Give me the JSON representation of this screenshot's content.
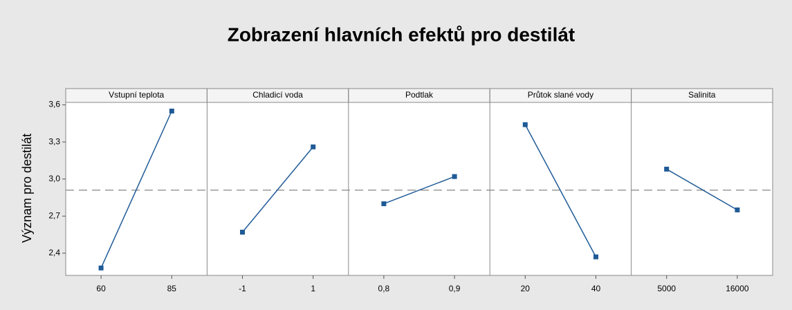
{
  "chart_data": {
    "type": "line",
    "title": "Zobrazení hlavních efektů pro destilát",
    "y_label": "Význam pro destilát",
    "ylim": [
      2.22,
      3.62
    ],
    "yticks": [
      {
        "value": 2.4,
        "label": "2,4"
      },
      {
        "value": 2.7,
        "label": "2,7"
      },
      {
        "value": 3.0,
        "label": "3,0"
      },
      {
        "value": 3.3,
        "label": "3,3"
      },
      {
        "value": 3.6,
        "label": "3,6"
      }
    ],
    "reference_line": 2.91,
    "color": "#1f5a96",
    "panels": [
      {
        "title": "Vstupní teplota",
        "categories": [
          "60",
          "85"
        ],
        "values": [
          2.28,
          3.55
        ]
      },
      {
        "title": "Chladicí voda",
        "categories": [
          "-1",
          "1"
        ],
        "values": [
          2.57,
          3.26
        ]
      },
      {
        "title": "Podtlak",
        "categories": [
          "0,8",
          "0,9"
        ],
        "values": [
          2.8,
          3.02
        ]
      },
      {
        "title": "Průtok slané vody",
        "categories": [
          "20",
          "40"
        ],
        "values": [
          3.44,
          2.37
        ]
      },
      {
        "title": "Salinita",
        "categories": [
          "5000",
          "16000"
        ],
        "values": [
          3.08,
          2.75
        ]
      }
    ]
  }
}
